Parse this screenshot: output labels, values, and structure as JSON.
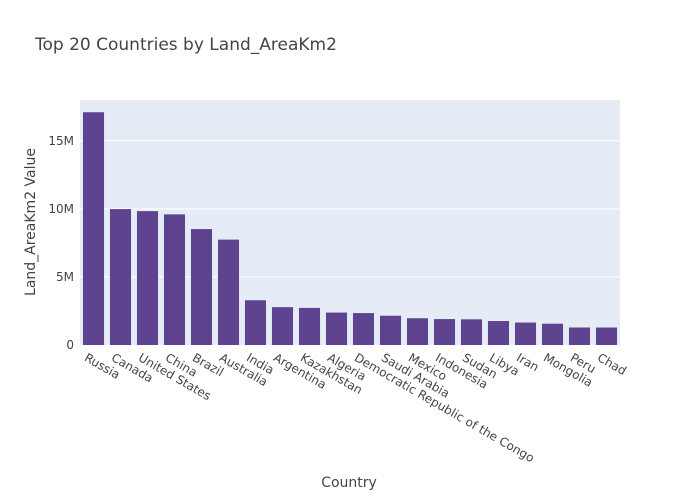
{
  "chart_data": {
    "type": "bar",
    "title": "Top 20 Countries by Land_AreaKm2",
    "xlabel": "Country",
    "ylabel": "Land_AreaKm2 Value",
    "categories": [
      "Russia",
      "Canada",
      "United States",
      "China",
      "Brazil",
      "Australia",
      "India",
      "Argentina",
      "Kazakhstan",
      "Algeria",
      "Democratic Republic of the Congo",
      "Saudi Arabia",
      "Mexico",
      "Indonesia",
      "Sudan",
      "Libya",
      "Iran",
      "Mongolia",
      "Peru",
      "Chad"
    ],
    "values": [
      17098246,
      9984670,
      9833517,
      9596961,
      8515767,
      7741220,
      3287263,
      2780400,
      2724900,
      2381741,
      2344858,
      2149690,
      1964375,
      1904569,
      1886068,
      1759541,
      1648195,
      1564110,
      1285216,
      1284000
    ],
    "ylim": [
      0,
      17998154
    ],
    "yticks": [
      {
        "value": 0,
        "label": "0"
      },
      {
        "value": 5000000,
        "label": "5M"
      },
      {
        "value": 10000000,
        "label": "10M"
      },
      {
        "value": 15000000,
        "label": "15M"
      }
    ],
    "colors": {
      "bar": "#5e4391",
      "plot_bg": "#e5ecf6",
      "grid": "#ffffff",
      "text": "#444444"
    },
    "grid": true,
    "legend": "none"
  }
}
